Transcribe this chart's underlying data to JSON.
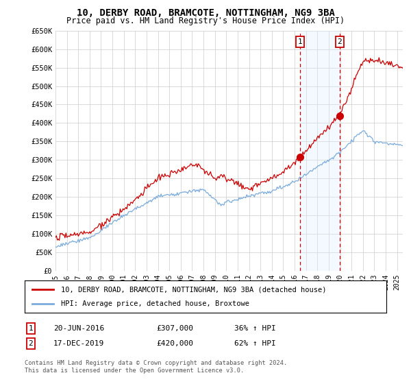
{
  "title": "10, DERBY ROAD, BRAMCOTE, NOTTINGHAM, NG9 3BA",
  "subtitle": "Price paid vs. HM Land Registry's House Price Index (HPI)",
  "ylim": [
    0,
    650000
  ],
  "xlim_start": 1995.0,
  "xlim_end": 2025.5,
  "sale1_date": 2016.47,
  "sale1_price": 307000,
  "sale1_text": "20-JUN-2016",
  "sale1_pct": "36%",
  "sale2_date": 2019.96,
  "sale2_price": 420000,
  "sale2_text": "17-DEC-2019",
  "sale2_pct": "62%",
  "legend_line1": "10, DERBY ROAD, BRAMCOTE, NOTTINGHAM, NG9 3BA (detached house)",
  "legend_line2": "HPI: Average price, detached house, Broxtowe",
  "footer": "Contains HM Land Registry data © Crown copyright and database right 2024.\nThis data is licensed under the Open Government Licence v3.0.",
  "background_color": "#ffffff",
  "grid_color": "#cccccc",
  "line1_color": "#cc0000",
  "line2_color": "#7aabdc",
  "shade_color": "#ddeeff",
  "marker_box_color": "#cc0000"
}
